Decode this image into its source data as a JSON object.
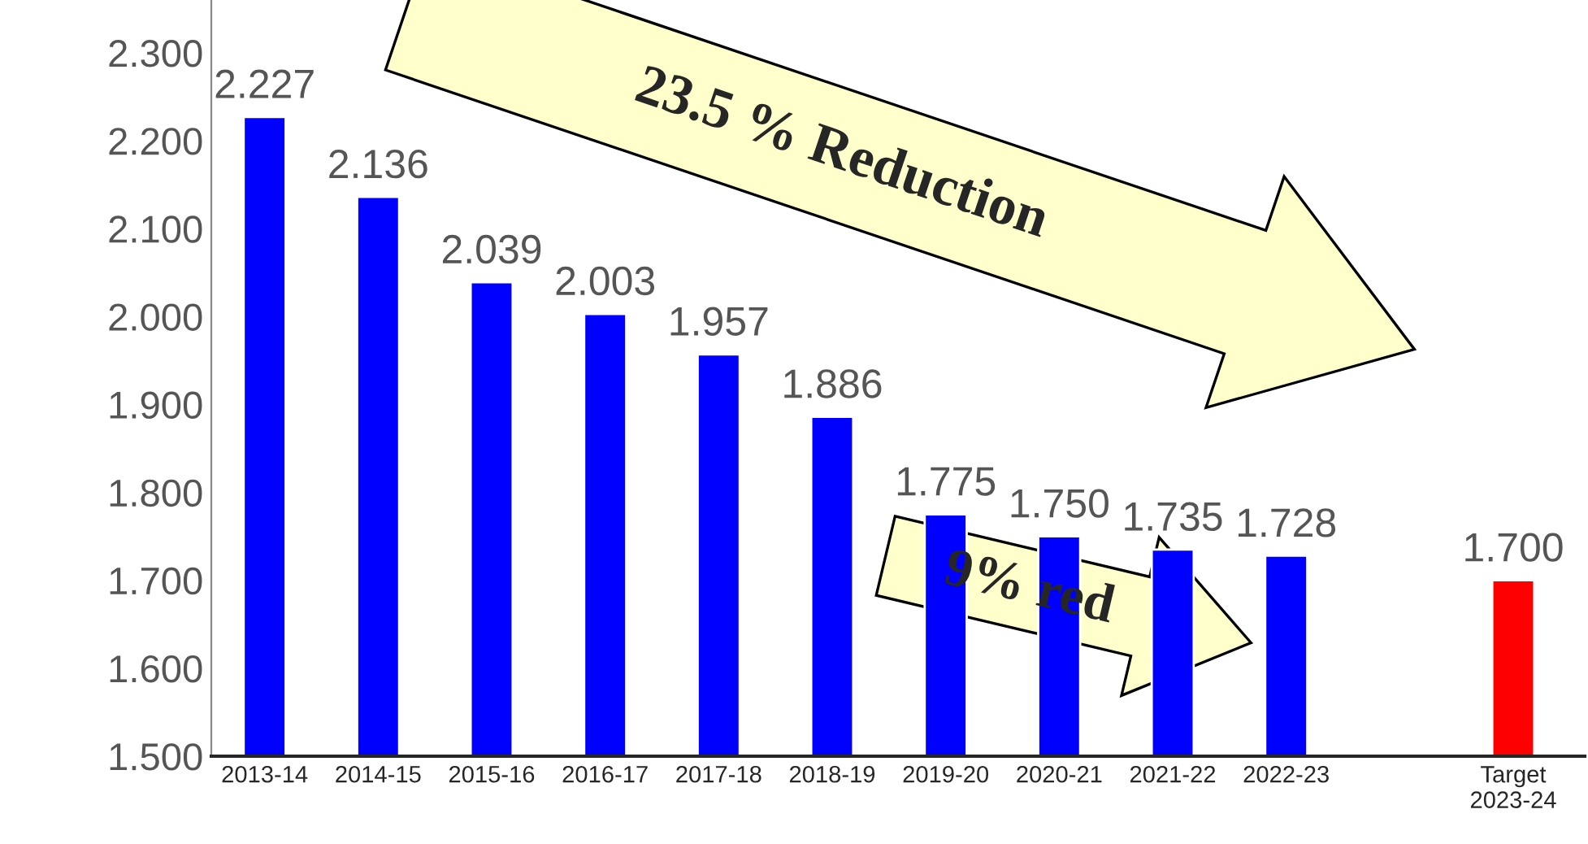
{
  "chart_data": {
    "type": "bar",
    "categories": [
      "2013-14",
      "2014-15",
      "2015-16",
      "2016-17",
      "2017-18",
      "2018-19",
      "2019-20",
      "2020-21",
      "2021-22",
      "2022-23",
      null,
      "Target\n2023-24"
    ],
    "values": [
      2.227,
      2.136,
      2.039,
      2.003,
      1.957,
      1.886,
      1.775,
      1.75,
      1.735,
      1.728,
      null,
      1.7
    ],
    "colors": [
      "#0000ff",
      "#0000ff",
      "#0000ff",
      "#0000ff",
      "#0000ff",
      "#0000ff",
      "#0000ff",
      "#0000ff",
      "#0000ff",
      "#0000ff",
      "#0000ff",
      "#ff0000"
    ],
    "value_labels": [
      "2.227",
      "2.136",
      "2.039",
      "2.003",
      "1.957",
      "1.886",
      "1.775",
      "1.750",
      "1.735",
      "1.728",
      null,
      "1.700"
    ],
    "ylim": [
      1.5,
      2.36
    ],
    "yticks": [
      {
        "value": 1.5,
        "label": "1.500"
      },
      {
        "value": 1.6,
        "label": "1.600"
      },
      {
        "value": 1.7,
        "label": "1.700"
      },
      {
        "value": 1.8,
        "label": "1.800"
      },
      {
        "value": 1.9,
        "label": "1.900"
      },
      {
        "value": 2.0,
        "label": "2.000"
      },
      {
        "value": 2.1,
        "label": "2.100"
      },
      {
        "value": 2.2,
        "label": "2.200"
      },
      {
        "value": 2.3,
        "label": "2.300"
      }
    ],
    "grid": false,
    "legend": false,
    "annotations": [
      "23.5 % Reduction",
      "9% red"
    ]
  }
}
